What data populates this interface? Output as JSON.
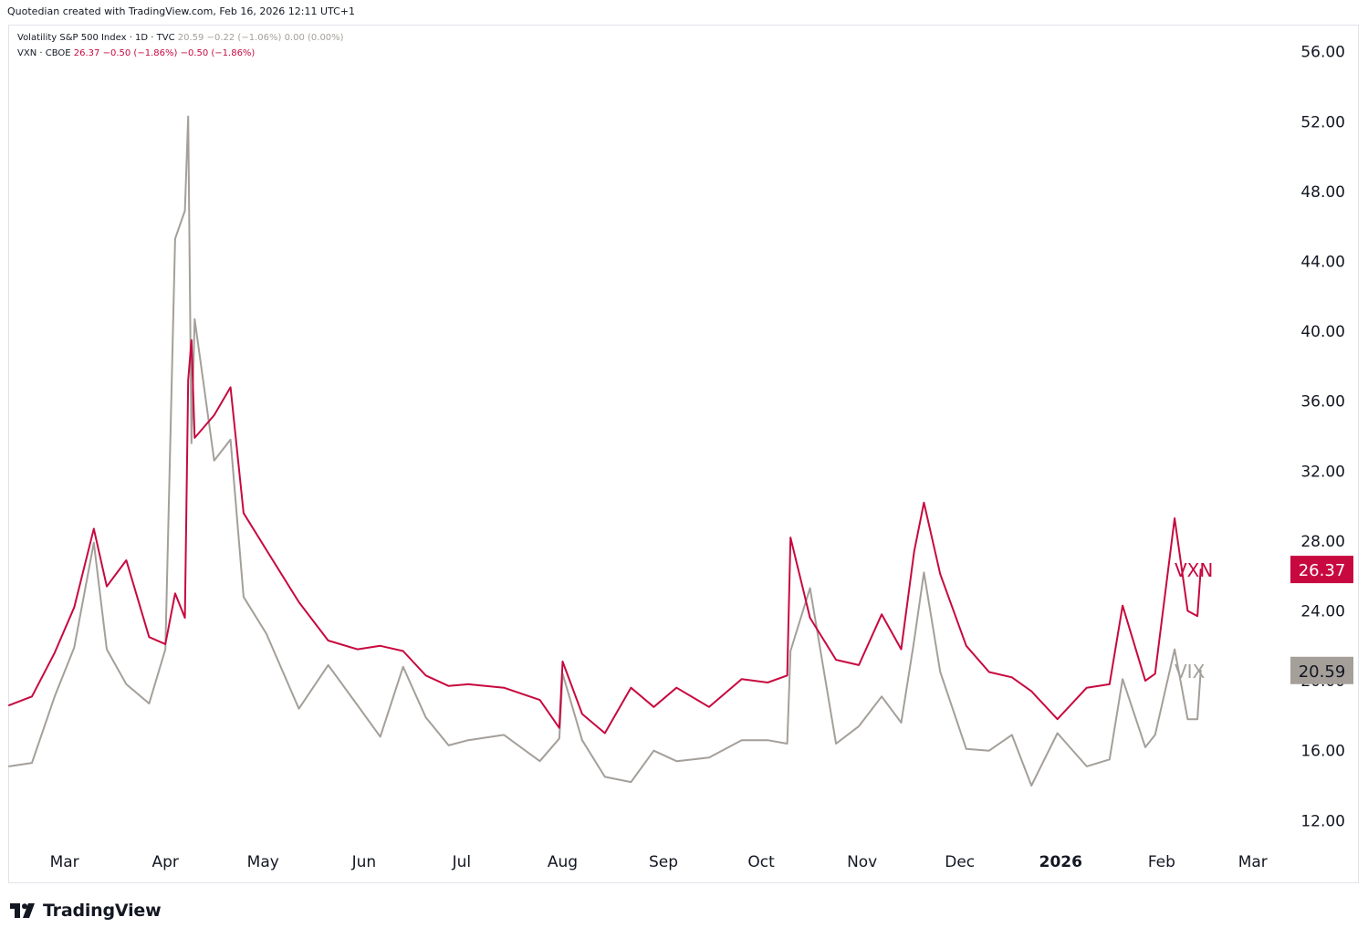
{
  "header": {
    "text": "Quotedian created with TradingView.com, Feb 16, 2026 12:11 UTC+1"
  },
  "legend": {
    "vix": {
      "label": "Volatility S&P 500 Index · 1D · TVC",
      "value": "20.59",
      "change": "−0.22 (−1.06%)",
      "extra": "0.00 (0.00%)"
    },
    "vxn": {
      "label": "VXN · CBOE",
      "value": "26.37",
      "change": "−0.50 (−1.86%)",
      "extra": "−0.50 (−1.86%)"
    }
  },
  "footer": {
    "brand": "TradingView"
  },
  "colors": {
    "vxn": "#c7093f",
    "vix": "#a49f99",
    "axis_text": "#131722"
  },
  "chart_data": {
    "type": "line",
    "y_range": [
      10.5,
      57.5
    ],
    "y_ticks": [
      "56.00",
      "52.00",
      "48.00",
      "44.00",
      "40.00",
      "36.00",
      "32.00",
      "28.00",
      "24.00",
      "20.00",
      "16.00",
      "12.00"
    ],
    "x_range": [
      "2025-02-12",
      "2026-03-12"
    ],
    "x_ticks": [
      {
        "date": "2025-03-01",
        "label": "Mar"
      },
      {
        "date": "2025-04-01",
        "label": "Apr"
      },
      {
        "date": "2025-05-01",
        "label": "May"
      },
      {
        "date": "2025-06-01",
        "label": "Jun"
      },
      {
        "date": "2025-07-01",
        "label": "Jul"
      },
      {
        "date": "2025-08-01",
        "label": "Aug"
      },
      {
        "date": "2025-09-01",
        "label": "Sep"
      },
      {
        "date": "2025-10-01",
        "label": "Oct"
      },
      {
        "date": "2025-11-01",
        "label": "Nov"
      },
      {
        "date": "2025-12-01",
        "label": "Dec"
      },
      {
        "date": "2026-01-01",
        "label": "2026",
        "bold": true
      },
      {
        "date": "2026-02-01",
        "label": "Feb"
      },
      {
        "date": "2026-03-01",
        "label": "Mar"
      }
    ],
    "series": [
      {
        "name": "VXN",
        "color": "#c7093f",
        "last_value": "26.37",
        "x": [
          "2025-02-12",
          "2025-02-19",
          "2025-02-26",
          "2025-03-04",
          "2025-03-10",
          "2025-03-14",
          "2025-03-20",
          "2025-03-27",
          "2025-04-01",
          "2025-04-04",
          "2025-04-07",
          "2025-04-08",
          "2025-04-09",
          "2025-04-10",
          "2025-04-16",
          "2025-04-21",
          "2025-04-25",
          "2025-05-02",
          "2025-05-12",
          "2025-05-21",
          "2025-05-30",
          "2025-06-06",
          "2025-06-13",
          "2025-06-20",
          "2025-06-27",
          "2025-07-03",
          "2025-07-14",
          "2025-07-25",
          "2025-07-31",
          "2025-08-01",
          "2025-08-07",
          "2025-08-14",
          "2025-08-22",
          "2025-08-29",
          "2025-09-05",
          "2025-09-15",
          "2025-09-25",
          "2025-10-03",
          "2025-10-09",
          "2025-10-10",
          "2025-10-16",
          "2025-10-24",
          "2025-10-31",
          "2025-11-07",
          "2025-11-13",
          "2025-11-17",
          "2025-11-20",
          "2025-11-25",
          "2025-12-03",
          "2025-12-10",
          "2025-12-17",
          "2025-12-23",
          "2025-12-31",
          "2026-01-09",
          "2026-01-16",
          "2026-01-20",
          "2026-01-27",
          "2026-01-30",
          "2026-02-05",
          "2026-02-09",
          "2026-02-12",
          "2026-02-13"
        ],
        "values": [
          18.6,
          19.1,
          21.6,
          24.2,
          28.7,
          25.4,
          26.9,
          22.5,
          22.1,
          25.0,
          23.6,
          37.2,
          39.5,
          33.9,
          35.2,
          36.8,
          29.6,
          27.5,
          24.5,
          22.3,
          21.8,
          22.0,
          21.7,
          20.3,
          19.7,
          19.8,
          19.6,
          18.9,
          17.3,
          21.1,
          18.1,
          17.0,
          19.6,
          18.5,
          19.6,
          18.5,
          20.1,
          19.9,
          20.3,
          28.2,
          23.6,
          21.2,
          20.9,
          23.8,
          21.8,
          27.4,
          30.2,
          26.1,
          22.0,
          20.5,
          20.2,
          19.4,
          17.8,
          19.6,
          19.8,
          24.3,
          20.0,
          20.4,
          29.3,
          24.0,
          23.7,
          26.37
        ]
      },
      {
        "name": "VIX",
        "color": "#a49f99",
        "last_value": "20.59",
        "x": [
          "2025-02-12",
          "2025-02-19",
          "2025-02-26",
          "2025-03-04",
          "2025-03-10",
          "2025-03-14",
          "2025-03-20",
          "2025-03-27",
          "2025-04-01",
          "2025-04-04",
          "2025-04-07",
          "2025-04-08",
          "2025-04-09",
          "2025-04-10",
          "2025-04-16",
          "2025-04-21",
          "2025-04-25",
          "2025-05-02",
          "2025-05-12",
          "2025-05-21",
          "2025-05-30",
          "2025-06-06",
          "2025-06-13",
          "2025-06-20",
          "2025-06-27",
          "2025-07-03",
          "2025-07-14",
          "2025-07-25",
          "2025-07-31",
          "2025-08-01",
          "2025-08-07",
          "2025-08-14",
          "2025-08-22",
          "2025-08-29",
          "2025-09-05",
          "2025-09-15",
          "2025-09-25",
          "2025-10-03",
          "2025-10-09",
          "2025-10-10",
          "2025-10-16",
          "2025-10-24",
          "2025-10-31",
          "2025-11-07",
          "2025-11-13",
          "2025-11-17",
          "2025-11-20",
          "2025-11-25",
          "2025-12-03",
          "2025-12-10",
          "2025-12-17",
          "2025-12-23",
          "2025-12-31",
          "2026-01-09",
          "2026-01-16",
          "2026-01-20",
          "2026-01-27",
          "2026-01-30",
          "2026-02-05",
          "2026-02-09",
          "2026-02-12",
          "2026-02-13"
        ],
        "values": [
          15.1,
          15.3,
          19.1,
          21.9,
          27.9,
          21.8,
          19.8,
          18.7,
          21.8,
          45.3,
          46.9,
          52.3,
          33.6,
          40.7,
          32.6,
          33.8,
          24.8,
          22.7,
          18.4,
          20.9,
          18.6,
          16.8,
          20.8,
          17.9,
          16.3,
          16.6,
          16.9,
          15.4,
          16.7,
          20.4,
          16.6,
          14.5,
          14.2,
          16.0,
          15.4,
          15.6,
          16.6,
          16.6,
          16.4,
          21.7,
          25.3,
          16.4,
          17.4,
          19.1,
          17.6,
          22.3,
          26.2,
          20.5,
          16.1,
          16.0,
          16.9,
          14.0,
          17.0,
          15.1,
          15.5,
          20.1,
          16.2,
          16.9,
          21.8,
          17.8,
          17.8,
          20.59
        ]
      }
    ]
  }
}
